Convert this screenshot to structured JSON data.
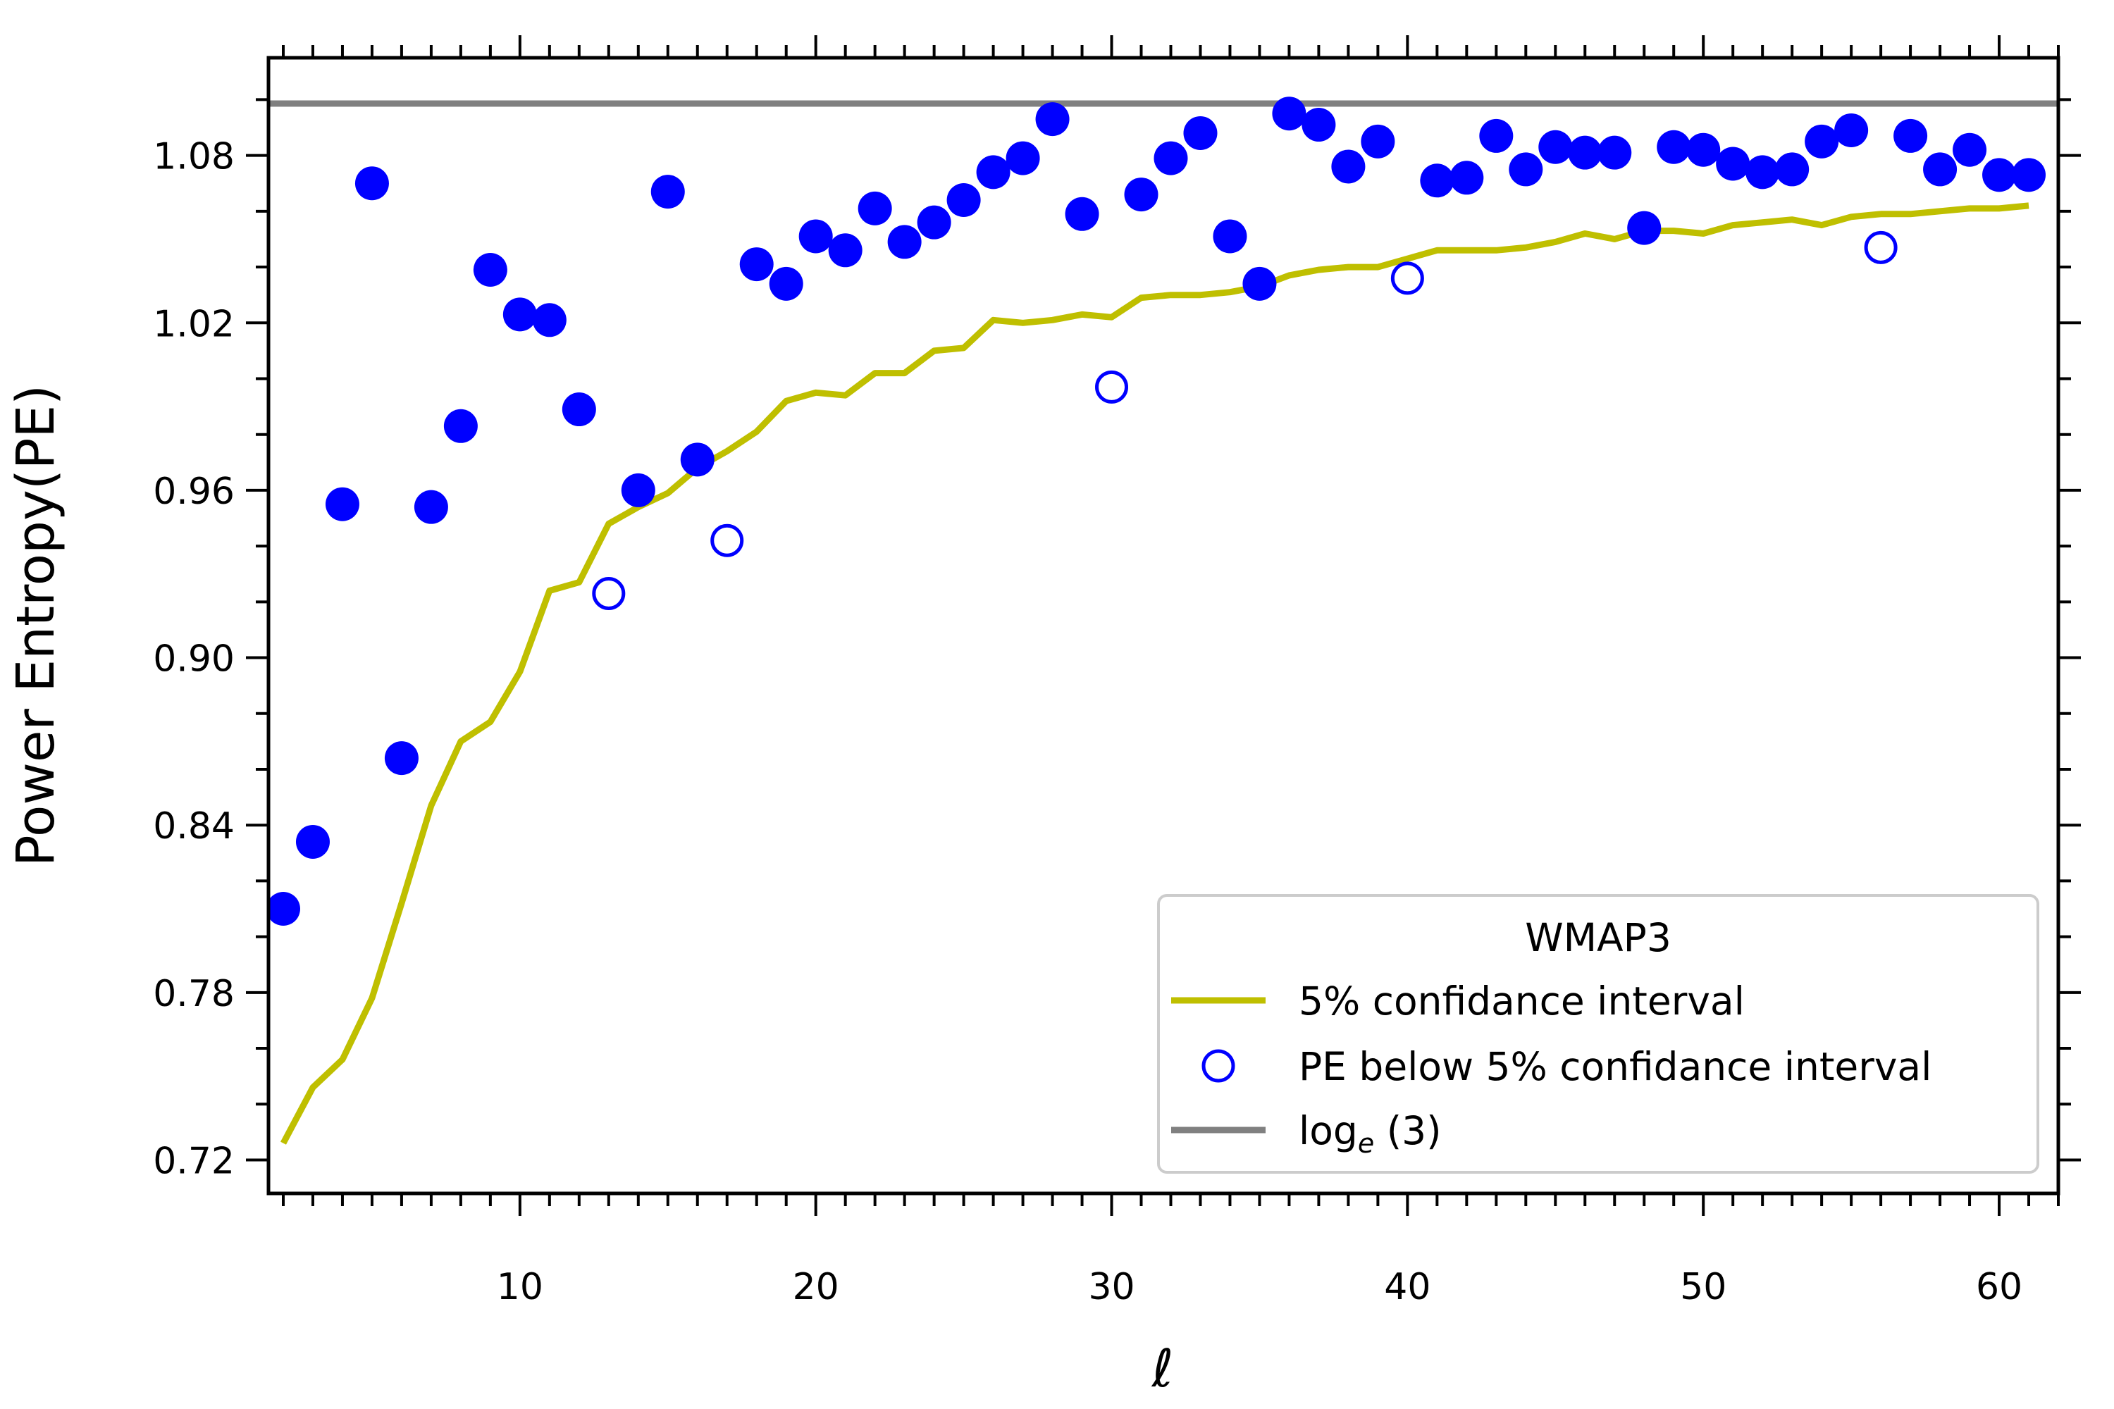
{
  "chart_data": {
    "type": "scatter",
    "xlabel": "ℓ",
    "ylabel": "Power Entropy(PE)",
    "xlim": [
      1.5,
      62
    ],
    "ylim": [
      0.708,
      1.115
    ],
    "x_ticks": [
      10,
      20,
      30,
      40,
      50,
      60
    ],
    "x_tick_labels": [
      "10",
      "20",
      "30",
      "40",
      "50",
      "60"
    ],
    "y_ticks": [
      0.72,
      0.78,
      0.84,
      0.9,
      0.96,
      1.02,
      1.08
    ],
    "y_tick_labels": [
      "0.72",
      "0.78",
      "0.84",
      "0.90",
      "0.96",
      "1.02",
      "1.08"
    ],
    "grid": false,
    "legend": {
      "position": "bottom-right",
      "title": "WMAP3",
      "entries": [
        {
          "label": "5% confidance interval",
          "kind": "line",
          "color": "#bfbf00"
        },
        {
          "label": "PE below 5% confidance interval",
          "kind": "open-circle",
          "color": "#0000ff"
        },
        {
          "label_main": "log",
          "label_sub": "e",
          "label_tail": " (3)",
          "kind": "line",
          "color": "#808080"
        }
      ]
    },
    "colors": {
      "points": "#0000ff",
      "confidence_line": "#bfbf00",
      "reference_line": "#808080"
    },
    "series": [
      {
        "kind": "scatter-filled",
        "points": [
          [
            2,
            0.81
          ],
          [
            3,
            0.834
          ],
          [
            4,
            0.955
          ],
          [
            5,
            1.07
          ],
          [
            6,
            0.864
          ],
          [
            7,
            0.954
          ],
          [
            8,
            0.983
          ],
          [
            9,
            1.039
          ],
          [
            10,
            1.023
          ],
          [
            11,
            1.021
          ],
          [
            12,
            0.989
          ],
          [
            14,
            0.96
          ],
          [
            15,
            1.067
          ],
          [
            16,
            0.971
          ],
          [
            18,
            1.041
          ],
          [
            19,
            1.034
          ],
          [
            20,
            1.051
          ],
          [
            21,
            1.046
          ],
          [
            22,
            1.061
          ],
          [
            23,
            1.049
          ],
          [
            24,
            1.056
          ],
          [
            25,
            1.064
          ],
          [
            26,
            1.074
          ],
          [
            27,
            1.079
          ],
          [
            28,
            1.093
          ],
          [
            29,
            1.059
          ],
          [
            31,
            1.066
          ],
          [
            32,
            1.079
          ],
          [
            33,
            1.088
          ],
          [
            34,
            1.051
          ],
          [
            35,
            1.034
          ],
          [
            36,
            1.095
          ],
          [
            37,
            1.091
          ],
          [
            38,
            1.076
          ],
          [
            39,
            1.085
          ],
          [
            41,
            1.071
          ],
          [
            42,
            1.072
          ],
          [
            43,
            1.087
          ],
          [
            44,
            1.075
          ],
          [
            45,
            1.083
          ],
          [
            46,
            1.081
          ],
          [
            47,
            1.081
          ],
          [
            48,
            1.054
          ],
          [
            49,
            1.083
          ],
          [
            50,
            1.082
          ],
          [
            51,
            1.077
          ],
          [
            52,
            1.074
          ],
          [
            53,
            1.075
          ],
          [
            54,
            1.085
          ],
          [
            55,
            1.089
          ],
          [
            57,
            1.087
          ],
          [
            58,
            1.075
          ],
          [
            59,
            1.082
          ],
          [
            60,
            1.073
          ],
          [
            61,
            1.073
          ]
        ]
      },
      {
        "name": "PE below 5% confidance interval",
        "kind": "scatter-open",
        "points": [
          [
            13,
            0.923
          ],
          [
            17,
            0.942
          ],
          [
            30,
            0.997
          ],
          [
            40,
            1.036
          ],
          [
            56,
            1.047
          ]
        ]
      },
      {
        "name": "5% confidance interval",
        "kind": "line",
        "points": [
          [
            2,
            0.726
          ],
          [
            3,
            0.746
          ],
          [
            4,
            0.756
          ],
          [
            5,
            0.778
          ],
          [
            6,
            0.812
          ],
          [
            7,
            0.847
          ],
          [
            8,
            0.87
          ],
          [
            9,
            0.877
          ],
          [
            10,
            0.895
          ],
          [
            11,
            0.924
          ],
          [
            12,
            0.927
          ],
          [
            13,
            0.948
          ],
          [
            14,
            0.954
          ],
          [
            15,
            0.959
          ],
          [
            16,
            0.968
          ],
          [
            17,
            0.974
          ],
          [
            18,
            0.981
          ],
          [
            19,
            0.992
          ],
          [
            20,
            0.995
          ],
          [
            21,
            0.994
          ],
          [
            22,
            1.002
          ],
          [
            23,
            1.002
          ],
          [
            24,
            1.01
          ],
          [
            25,
            1.011
          ],
          [
            26,
            1.021
          ],
          [
            27,
            1.02
          ],
          [
            28,
            1.021
          ],
          [
            29,
            1.023
          ],
          [
            30,
            1.022
          ],
          [
            31,
            1.029
          ],
          [
            32,
            1.03
          ],
          [
            33,
            1.03
          ],
          [
            34,
            1.031
          ],
          [
            35,
            1.033
          ],
          [
            36,
            1.037
          ],
          [
            37,
            1.039
          ],
          [
            38,
            1.04
          ],
          [
            39,
            1.04
          ],
          [
            40,
            1.043
          ],
          [
            41,
            1.046
          ],
          [
            42,
            1.046
          ],
          [
            43,
            1.046
          ],
          [
            44,
            1.047
          ],
          [
            45,
            1.049
          ],
          [
            46,
            1.052
          ],
          [
            47,
            1.05
          ],
          [
            48,
            1.053
          ],
          [
            49,
            1.053
          ],
          [
            50,
            1.052
          ],
          [
            51,
            1.055
          ],
          [
            52,
            1.056
          ],
          [
            53,
            1.057
          ],
          [
            54,
            1.055
          ],
          [
            55,
            1.058
          ],
          [
            56,
            1.059
          ],
          [
            57,
            1.059
          ],
          [
            58,
            1.06
          ],
          [
            59,
            1.061
          ],
          [
            60,
            1.061
          ],
          [
            61,
            1.062
          ]
        ]
      },
      {
        "name": "loge(3)",
        "kind": "hline",
        "y": 1.0986
      }
    ]
  }
}
